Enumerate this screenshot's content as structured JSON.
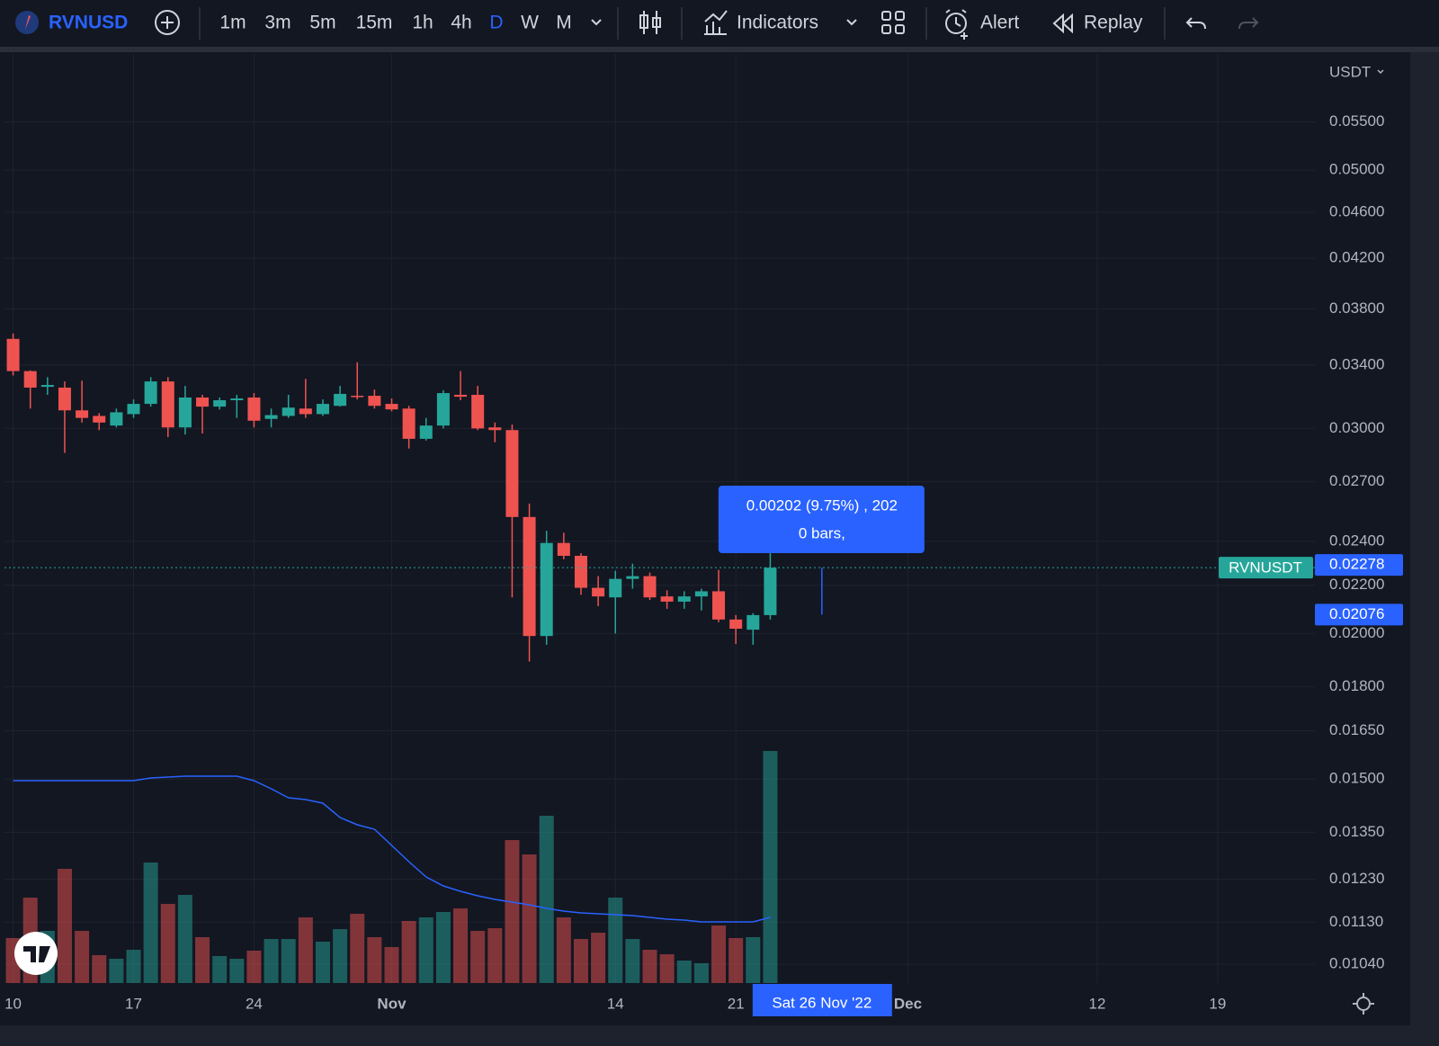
{
  "toolbar": {
    "symbol": "RVNUSD",
    "intervals": [
      "1m",
      "3m",
      "5m",
      "15m",
      "1h",
      "4h",
      "D",
      "W",
      "M"
    ],
    "active": "D",
    "indicators": "Indicators",
    "alert": "Alert",
    "replay": "Replay"
  },
  "chart_data": {
    "type": "candlestick",
    "currency": "USDT",
    "log_scale": true,
    "grid": true,
    "up_color": "#26a69a",
    "down_color": "#ef5350",
    "ma_color": "#2962ff",
    "x": [
      "2022-10-10",
      "2022-10-11",
      "2022-10-12",
      "2022-10-13",
      "2022-10-14",
      "2022-10-15",
      "2022-10-16",
      "2022-10-17",
      "2022-10-18",
      "2022-10-19",
      "2022-10-20",
      "2022-10-21",
      "2022-10-22",
      "2022-10-23",
      "2022-10-24",
      "2022-10-25",
      "2022-10-26",
      "2022-10-27",
      "2022-10-28",
      "2022-10-29",
      "2022-10-30",
      "2022-10-31",
      "2022-11-01",
      "2022-11-02",
      "2022-11-03",
      "2022-11-04",
      "2022-11-05",
      "2022-11-06",
      "2022-11-07",
      "2022-11-08",
      "2022-11-09",
      "2022-11-10",
      "2022-11-11",
      "2022-11-12",
      "2022-11-13",
      "2022-11-14",
      "2022-11-15",
      "2022-11-16",
      "2022-11-17",
      "2022-11-18",
      "2022-11-19",
      "2022-11-20",
      "2022-11-21",
      "2022-11-22",
      "2022-11-23"
    ],
    "open": [
      0.03581,
      0.0336,
      0.03257,
      0.03252,
      0.03109,
      0.03075,
      0.03017,
      0.03086,
      0.03149,
      0.03292,
      0.03006,
      0.03189,
      0.03132,
      0.03172,
      0.03189,
      0.03057,
      0.03075,
      0.0312,
      0.03086,
      0.03137,
      0.032,
      0.032,
      0.03149,
      0.0312,
      0.02939,
      0.03017,
      0.03206,
      0.03206,
      0.03006,
      0.0299,
      0.02518,
      0.0199,
      0.02392,
      0.02332,
      0.02189,
      0.02148,
      0.02228,
      0.0224,
      0.02152,
      0.0213,
      0.02152,
      0.02174,
      0.02056,
      0.02015,
      0.02074
    ],
    "high": [
      0.03619,
      0.03365,
      0.0332,
      0.03292,
      0.03297,
      0.03092,
      0.0312,
      0.03177,
      0.0332,
      0.0332,
      0.03263,
      0.03206,
      0.03189,
      0.03206,
      0.03217,
      0.0312,
      0.03206,
      0.03309,
      0.03177,
      0.03263,
      0.03419,
      0.0324,
      0.03183,
      0.03137,
      0.03063,
      0.03235,
      0.0336,
      0.03263,
      0.03035,
      0.03023,
      0.02586,
      0.0245,
      0.02441,
      0.02344,
      0.0224,
      0.02264,
      0.02296,
      0.02256,
      0.02178,
      0.02174,
      0.02185,
      0.02268,
      0.02074,
      0.02082,
      0.02344
    ],
    "low": [
      0.03331,
      0.0312,
      0.03206,
      0.02858,
      0.03035,
      0.0299,
      0.03006,
      0.03063,
      0.03132,
      0.02949,
      0.02964,
      0.0297,
      0.03114,
      0.03063,
      0.03006,
      0.03006,
      0.03063,
      0.03063,
      0.03075,
      0.03132,
      0.03177,
      0.0312,
      0.03103,
      0.02883,
      0.02929,
      0.03,
      0.03172,
      0.0299,
      0.02919,
      0.02148,
      0.01892,
      0.01956,
      0.02316,
      0.02159,
      0.02111,
      0.02,
      0.02185,
      0.02137,
      0.021,
      0.021,
      0.02093,
      0.02045,
      0.01959,
      0.01956,
      0.02056
    ],
    "close": [
      0.0336,
      0.03252,
      0.03269,
      0.03109,
      0.03063,
      0.03035,
      0.03097,
      0.03149,
      0.03292,
      0.03006,
      0.03189,
      0.03132,
      0.03172,
      0.03183,
      0.03046,
      0.0308,
      0.03126,
      0.03086,
      0.03149,
      0.03212,
      0.03194,
      0.03137,
      0.03115,
      0.02939,
      0.03017,
      0.03217,
      0.03194,
      0.03,
      0.0299,
      0.02518,
      0.0199,
      0.02392,
      0.02332,
      0.02189,
      0.02152,
      0.02228,
      0.0224,
      0.02148,
      0.0213,
      0.02152,
      0.02174,
      0.02056,
      0.02019,
      0.02074,
      0.02278
    ],
    "volume": [
      50,
      95,
      58,
      127,
      58,
      31,
      27,
      37,
      134,
      88,
      98,
      51,
      30,
      27,
      36,
      49,
      49,
      73,
      46,
      60,
      77,
      51,
      40,
      69,
      73,
      79,
      83,
      58,
      61,
      159,
      143,
      186,
      73,
      49,
      56,
      95,
      49,
      37,
      32,
      25,
      22,
      64,
      50,
      51,
      258
    ],
    "volume_ma": [
      225,
      225,
      225,
      225,
      225,
      225,
      225,
      225,
      228,
      229,
      230,
      230,
      230,
      230,
      225,
      216,
      206,
      204,
      200,
      184,
      176,
      171,
      153,
      135,
      118,
      108,
      102,
      97,
      93,
      90,
      87,
      83,
      80,
      78,
      77,
      76,
      75,
      73,
      71,
      70,
      68,
      68,
      68,
      68,
      73
    ],
    "vlim": [
      0,
      300
    ],
    "ylim": [
      0.01002,
      0.0629
    ],
    "yticks": [
      {
        "value": 0.0104,
        "label": "0.01040"
      },
      {
        "value": 0.0113,
        "label": "0.01130"
      },
      {
        "value": 0.0123,
        "label": "0.01230"
      },
      {
        "value": 0.0135,
        "label": "0.01350"
      },
      {
        "value": 0.015,
        "label": "0.01500"
      },
      {
        "value": 0.0165,
        "label": "0.01650"
      },
      {
        "value": 0.018,
        "label": "0.01800"
      },
      {
        "value": 0.02,
        "label": "0.02000"
      },
      {
        "value": 0.022,
        "label": "0.02200"
      },
      {
        "value": 0.024,
        "label": "0.02400"
      },
      {
        "value": 0.027,
        "label": "0.02700"
      },
      {
        "value": 0.03,
        "label": "0.03000"
      },
      {
        "value": 0.034,
        "label": "0.03400"
      },
      {
        "value": 0.038,
        "label": "0.03800"
      },
      {
        "value": 0.042,
        "label": "0.04200"
      },
      {
        "value": 0.046,
        "label": "0.04600"
      },
      {
        "value": 0.05,
        "label": "0.05000"
      },
      {
        "value": 0.055,
        "label": "0.05500"
      }
    ],
    "xlim": [
      "2022-10-09T12:00Z",
      "2022-12-24T15:36Z"
    ],
    "xticks": [
      {
        "value": "2022-10-10",
        "label": "10"
      },
      {
        "value": "2022-10-17",
        "label": "17"
      },
      {
        "value": "2022-10-24",
        "label": "24"
      },
      {
        "value": "2022-11-01",
        "label": "Nov"
      },
      {
        "value": "2022-11-14",
        "label": "14"
      },
      {
        "value": "2022-11-21",
        "label": "21"
      },
      {
        "value": "2022-12-01",
        "label": "Dec"
      },
      {
        "value": "2022-12-12",
        "label": "12"
      },
      {
        "value": "2022-12-19",
        "label": "19"
      }
    ],
    "last_price": {
      "label": "RVNUSDT",
      "value": 0.02278
    },
    "crosshair": {
      "x": "2022-11-26",
      "date": "Sat 26 Nov '22",
      "price": 0.02076
    },
    "measure": {
      "text": "0.00202 (9.75%) , 202",
      "bars": "0 bars,"
    }
  }
}
